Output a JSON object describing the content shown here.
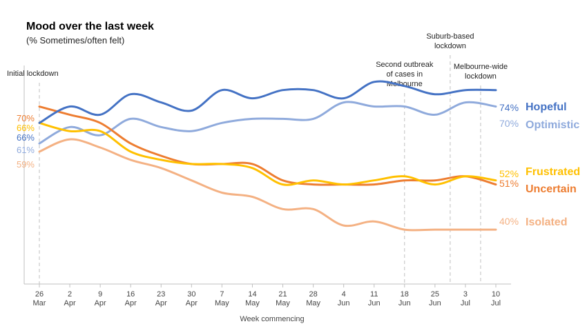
{
  "chart_data": {
    "type": "line",
    "title": "Mood over the last week",
    "subtitle": "(% Sometimes/often felt)",
    "xlabel": "Week commencing",
    "categories": [
      "26 Mar",
      "2 Apr",
      "9 Apr",
      "16 Apr",
      "23 Apr",
      "30 Apr",
      "7 May",
      "14 May",
      "21 May",
      "28 May",
      "4 Jun",
      "11 Jun",
      "18 Jun",
      "25 Jun",
      "3 Jul",
      "10 Jul"
    ],
    "tick_top": [
      "26",
      "2",
      "9",
      "16",
      "23",
      "30",
      "7",
      "14",
      "21",
      "28",
      "4",
      "11",
      "18",
      "25",
      "3",
      "10"
    ],
    "tick_bottom": [
      "Mar",
      "Apr",
      "Apr",
      "Apr",
      "Apr",
      "Apr",
      "May",
      "May",
      "May",
      "May",
      "Jun",
      "Jun",
      "Jun",
      "Jun",
      "Jul",
      "Jul"
    ],
    "ylim": [
      0,
      100
    ],
    "grid": false,
    "series": [
      {
        "name": "Hopeful",
        "color": "#4472C4",
        "start_label": "66%",
        "end_label": "74%",
        "values": [
          66,
          70,
          68,
          73,
          71,
          69,
          74,
          72,
          74,
          74,
          72,
          76,
          75,
          73,
          74,
          74
        ]
      },
      {
        "name": "Optimistic",
        "color": "#8FAADC",
        "start_label": "61%",
        "end_label": "70%",
        "values": [
          61,
          65,
          63,
          67,
          65,
          64,
          66,
          67,
          67,
          67,
          71,
          70,
          70,
          68,
          71,
          70
        ]
      },
      {
        "name": "Frustrated",
        "color": "#FFC000",
        "start_label": "66%",
        "end_label": "52%",
        "values": [
          66,
          64,
          64,
          59,
          57,
          56,
          56,
          55,
          51,
          52,
          51,
          52,
          53,
          51,
          53,
          52
        ]
      },
      {
        "name": "Uncertain",
        "color": "#ED7D31",
        "start_label": "70%",
        "end_label": "51%",
        "values": [
          70,
          68,
          66,
          61,
          58,
          56,
          56,
          56,
          52,
          51,
          51,
          51,
          52,
          52,
          53,
          51
        ]
      },
      {
        "name": "Isolated",
        "color": "#F4B183",
        "start_label": "59%",
        "end_label": "40%",
        "values": [
          59,
          62,
          60,
          57,
          55,
          52,
          49,
          48,
          45,
          45,
          41,
          42,
          40,
          40,
          40,
          40
        ]
      }
    ],
    "annotations": [
      {
        "at": "26 Mar",
        "lines": [
          "Initial lockdown"
        ]
      },
      {
        "at": "18 Jun",
        "lines": [
          "Second outbreak",
          "of cases in",
          "Melbourne"
        ]
      },
      {
        "at": "25 Jun",
        "lines": [
          "Suburb-based",
          "lockdown"
        ]
      },
      {
        "at": "3 Jul",
        "lines": [
          "Melbourne-wide",
          "lockdown"
        ]
      }
    ]
  }
}
